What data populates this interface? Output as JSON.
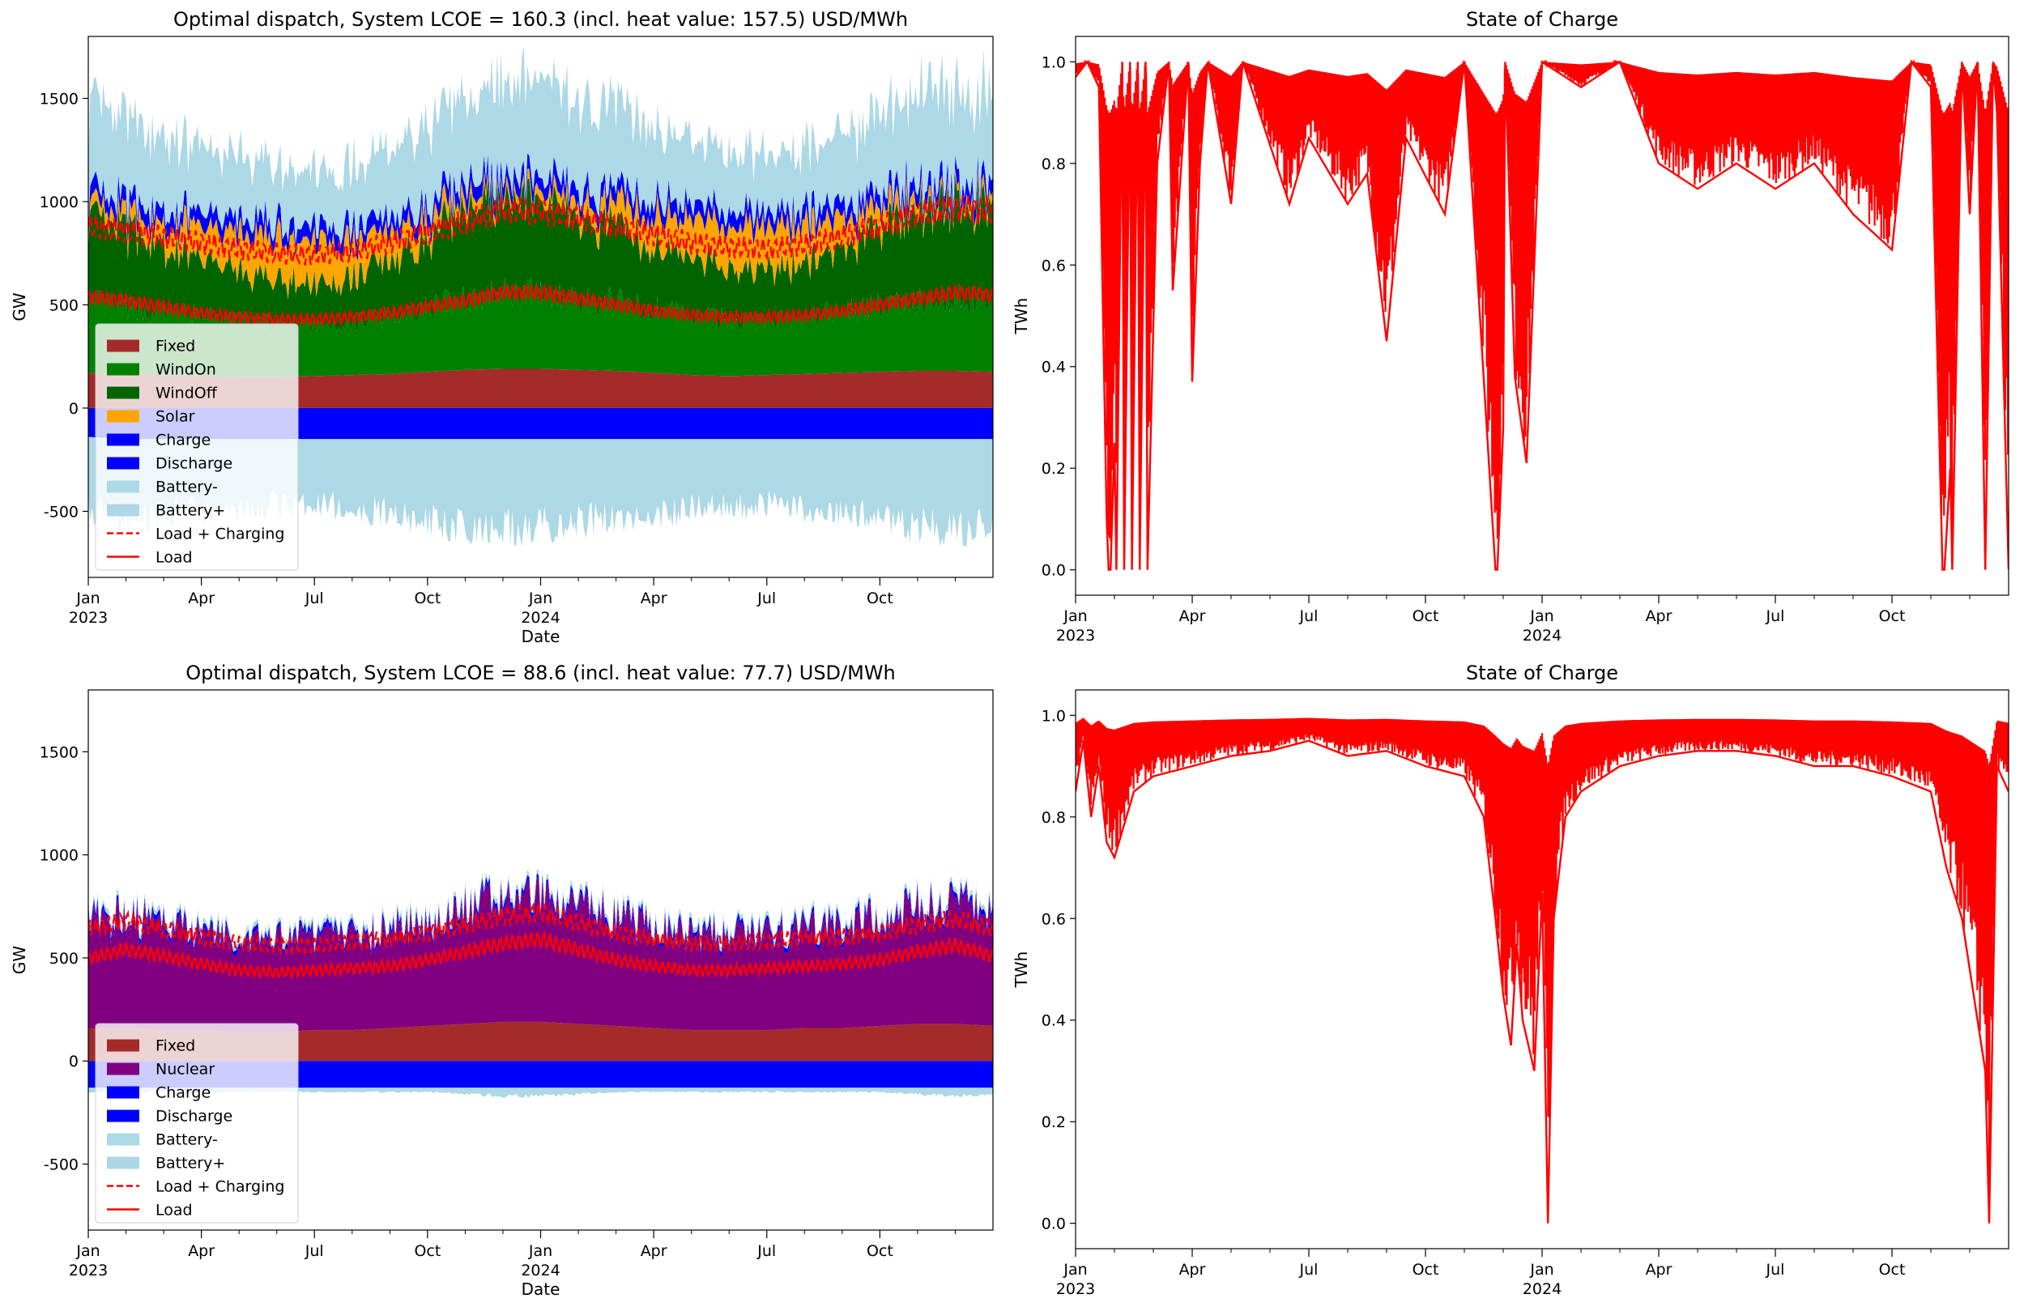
{
  "chart_data": [
    {
      "panel": "top-left",
      "type": "area",
      "title": "Optimal dispatch, System LCOE = 160.3 (incl. heat value: 157.5) USD/MWh",
      "ylabel": "GW",
      "xlabel": "Date",
      "ylim": [
        -820,
        1800
      ],
      "yticks": [
        -500,
        0,
        500,
        1000,
        1500
      ],
      "xticks": [
        {
          "m": 0,
          "line1": "Jan",
          "line2": "2023"
        },
        {
          "m": 3,
          "line1": "Apr",
          "line2": ""
        },
        {
          "m": 6,
          "line1": "Jul",
          "line2": ""
        },
        {
          "m": 9,
          "line1": "Oct",
          "line2": ""
        },
        {
          "m": 12,
          "line1": "Jan",
          "line2": "2024"
        },
        {
          "m": 15,
          "line1": "Apr",
          "line2": ""
        },
        {
          "m": 18,
          "line1": "Jul",
          "line2": ""
        },
        {
          "m": 21,
          "line1": "Oct",
          "line2": ""
        }
      ],
      "legend_position": "lower-left",
      "x_months": [
        0,
        1,
        2,
        3,
        4,
        5,
        6,
        7,
        8,
        9,
        10,
        11,
        12,
        13,
        14,
        15,
        16,
        17,
        18,
        19,
        20,
        21,
        22,
        23,
        24
      ],
      "series": [
        {
          "name": "Fixed",
          "color": "#a52a2a",
          "kind": "pos",
          "values": [
            170,
            165,
            160,
            155,
            150,
            150,
            155,
            160,
            165,
            175,
            185,
            190,
            190,
            185,
            180,
            170,
            160,
            155,
            160,
            165,
            170,
            175,
            180,
            180,
            175
          ]
        },
        {
          "name": "WindOn",
          "color": "#008000",
          "kind": "pos",
          "values": [
            300,
            280,
            260,
            250,
            230,
            220,
            210,
            220,
            240,
            270,
            300,
            320,
            320,
            300,
            290,
            270,
            250,
            240,
            230,
            240,
            260,
            280,
            300,
            310,
            300
          ]
        },
        {
          "name": "WindOff",
          "color": "#006400",
          "kind": "pos",
          "values": [
            350,
            320,
            280,
            230,
            200,
            180,
            170,
            190,
            230,
            300,
            360,
            400,
            390,
            360,
            320,
            270,
            230,
            210,
            200,
            220,
            260,
            320,
            380,
            400,
            380
          ]
        },
        {
          "name": "Solar",
          "color": "#ffa500",
          "kind": "pos",
          "values": [
            40,
            60,
            90,
            130,
            160,
            180,
            180,
            160,
            120,
            80,
            50,
            30,
            40,
            60,
            90,
            130,
            160,
            180,
            180,
            160,
            120,
            80,
            50,
            30,
            40
          ]
        },
        {
          "name": "Charge",
          "color": "#0000ff",
          "kind": "neg",
          "values": [
            -140,
            -150,
            -150,
            -150,
            -150,
            -150,
            -150,
            -150,
            -150,
            -150,
            -150,
            -150,
            -150,
            -150,
            -150,
            -150,
            -150,
            -150,
            -150,
            -150,
            -150,
            -150,
            -150,
            -150,
            -150
          ]
        },
        {
          "name": "Discharge",
          "color": "#0000ff",
          "kind": "pos",
          "values": [
            60,
            60,
            60,
            60,
            60,
            60,
            60,
            60,
            60,
            60,
            60,
            60,
            60,
            60,
            60,
            60,
            60,
            60,
            60,
            60,
            60,
            60,
            60,
            60,
            60
          ]
        },
        {
          "name": "Battery-",
          "color": "#add8e6",
          "kind": "neg",
          "values": [
            -360,
            -380,
            -360,
            -350,
            -340,
            -320,
            -310,
            -330,
            -360,
            -400,
            -420,
            -430,
            -420,
            -400,
            -380,
            -360,
            -340,
            -330,
            -320,
            -340,
            -360,
            -380,
            -420,
            -440,
            -420
          ]
        },
        {
          "name": "Battery+",
          "color": "#add8e6",
          "kind": "pos",
          "values": [
            350,
            330,
            300,
            280,
            260,
            240,
            230,
            250,
            280,
            330,
            370,
            400,
            400,
            370,
            340,
            300,
            270,
            250,
            240,
            260,
            300,
            340,
            380,
            410,
            390
          ]
        },
        {
          "name": "Load + Charging",
          "color": "#ff0000",
          "kind": "line",
          "dash": "12,6",
          "values": [
            880,
            860,
            830,
            800,
            770,
            750,
            740,
            760,
            800,
            850,
            900,
            960,
            950,
            920,
            880,
            840,
            800,
            780,
            770,
            790,
            830,
            880,
            940,
            970,
            950
          ]
        },
        {
          "name": "Load",
          "color": "#ff0000",
          "kind": "line",
          "dash": "",
          "values": [
            540,
            520,
            490,
            460,
            440,
            430,
            430,
            440,
            460,
            490,
            520,
            560,
            560,
            530,
            500,
            470,
            450,
            440,
            440,
            450,
            470,
            500,
            530,
            560,
            550
          ]
        }
      ]
    },
    {
      "panel": "top-right",
      "type": "line",
      "title": "State of Charge",
      "ylabel": "TWh",
      "xlabel": "",
      "ylim": [
        -0.05,
        1.05
      ],
      "yticks": [
        0.0,
        0.2,
        0.4,
        0.6,
        0.8,
        1.0
      ],
      "xticks": [
        {
          "m": 0,
          "line1": "Jan",
          "line2": "2023"
        },
        {
          "m": 3,
          "line1": "Apr",
          "line2": ""
        },
        {
          "m": 6,
          "line1": "Jul",
          "line2": ""
        },
        {
          "m": 9,
          "line1": "Oct",
          "line2": ""
        },
        {
          "m": 12,
          "line1": "Jan",
          "line2": "2024"
        },
        {
          "m": 15,
          "line1": "Apr",
          "line2": ""
        },
        {
          "m": 18,
          "line1": "Jul",
          "line2": ""
        },
        {
          "m": 21,
          "line1": "Oct",
          "line2": ""
        }
      ],
      "series": [
        {
          "color": "#ff0000",
          "x_months": [
            0,
            0.3,
            0.6,
            0.8,
            0.85,
            0.9,
            1.0,
            1.05,
            1.2,
            1.25,
            1.4,
            1.45,
            1.6,
            1.65,
            1.8,
            1.85,
            2.1,
            2.4,
            2.5,
            2.9,
            3.0,
            3.2,
            3.4,
            4.0,
            4.3,
            5.5,
            6.0,
            7.0,
            7.5,
            8.0,
            8.5,
            9.5,
            10.0,
            10.8,
            10.85,
            11.0,
            11.05,
            11.3,
            11.6,
            12.0,
            13.0,
            14.0,
            15.0,
            16.0,
            17.0,
            18.0,
            19.0,
            20.0,
            21.0,
            21.5,
            22.0,
            22.3,
            22.35,
            22.5,
            22.55,
            22.8,
            23.0,
            23.2,
            23.4,
            23.6,
            23.7,
            24.0
          ],
          "values": [
            0.97,
            1.0,
            0.95,
            0.1,
            0.0,
            0.0,
            0.25,
            0.0,
            1.0,
            0.0,
            1.0,
            0.0,
            1.0,
            0.0,
            1.0,
            0.0,
            0.8,
            1.0,
            0.55,
            1.0,
            0.37,
            0.8,
            1.0,
            0.72,
            1.0,
            0.72,
            0.85,
            0.72,
            0.78,
            0.45,
            0.85,
            0.7,
            1.0,
            0.0,
            0.0,
            0.28,
            1.0,
            0.38,
            0.21,
            1.0,
            0.95,
            1.0,
            0.8,
            0.75,
            0.8,
            0.75,
            0.8,
            0.7,
            0.63,
            1.0,
            0.95,
            0.0,
            0.0,
            0.2,
            0.0,
            1.0,
            0.7,
            1.0,
            0.0,
            1.0,
            0.9,
            0.0
          ]
        }
      ]
    },
    {
      "panel": "bottom-left",
      "type": "area",
      "title": "Optimal dispatch, System LCOE = 88.6 (incl. heat value: 77.7) USD/MWh",
      "ylabel": "GW",
      "xlabel": "Date",
      "ylim": [
        -820,
        1800
      ],
      "yticks": [
        -500,
        0,
        500,
        1000,
        1500
      ],
      "xticks": [
        {
          "m": 0,
          "line1": "Jan",
          "line2": "2023"
        },
        {
          "m": 3,
          "line1": "Apr",
          "line2": ""
        },
        {
          "m": 6,
          "line1": "Jul",
          "line2": ""
        },
        {
          "m": 9,
          "line1": "Oct",
          "line2": ""
        },
        {
          "m": 12,
          "line1": "Jan",
          "line2": "2024"
        },
        {
          "m": 15,
          "line1": "Apr",
          "line2": ""
        },
        {
          "m": 18,
          "line1": "Jul",
          "line2": ""
        },
        {
          "m": 21,
          "line1": "Oct",
          "line2": ""
        }
      ],
      "legend_position": "lower-left",
      "x_months": [
        0,
        1,
        2,
        3,
        4,
        5,
        6,
        7,
        8,
        9,
        10,
        11,
        12,
        13,
        14,
        15,
        16,
        17,
        18,
        19,
        20,
        21,
        22,
        23,
        24
      ],
      "series": [
        {
          "name": "Fixed",
          "color": "#a52a2a",
          "kind": "pos",
          "values": [
            160,
            160,
            150,
            150,
            140,
            140,
            150,
            150,
            160,
            170,
            180,
            190,
            190,
            180,
            170,
            160,
            150,
            150,
            150,
            160,
            160,
            170,
            180,
            180,
            170
          ]
        },
        {
          "name": "Nuclear",
          "color": "#800080",
          "kind": "pos",
          "values": [
            430,
            460,
            440,
            410,
            380,
            370,
            380,
            390,
            400,
            420,
            470,
            510,
            520,
            480,
            440,
            410,
            390,
            390,
            400,
            410,
            420,
            440,
            480,
            510,
            470
          ]
        },
        {
          "name": "Charge",
          "color": "#0000ff",
          "kind": "neg",
          "values": [
            -130,
            -130,
            -130,
            -130,
            -130,
            -130,
            -130,
            -130,
            -130,
            -130,
            -130,
            -130,
            -130,
            -130,
            -130,
            -130,
            -130,
            -130,
            -130,
            -130,
            -130,
            -130,
            -130,
            -130,
            -130
          ]
        },
        {
          "name": "Discharge",
          "color": "#0000ff",
          "kind": "pos",
          "values": [
            20,
            20,
            20,
            20,
            20,
            20,
            20,
            20,
            20,
            20,
            20,
            20,
            20,
            20,
            20,
            20,
            20,
            20,
            20,
            20,
            20,
            20,
            20,
            20,
            20
          ]
        },
        {
          "name": "Battery-",
          "color": "#add8e6",
          "kind": "neg",
          "values": [
            -20,
            -20,
            -20,
            -20,
            -20,
            -20,
            -20,
            -20,
            -20,
            -20,
            -30,
            -40,
            -40,
            -30,
            -20,
            -20,
            -20,
            -20,
            -20,
            -20,
            -20,
            -20,
            -30,
            -40,
            -30
          ]
        },
        {
          "name": "Battery+",
          "color": "#add8e6",
          "kind": "pos",
          "values": [
            20,
            20,
            20,
            20,
            20,
            20,
            20,
            20,
            20,
            20,
            20,
            20,
            20,
            20,
            20,
            20,
            20,
            20,
            20,
            20,
            20,
            20,
            20,
            20,
            20
          ]
        },
        {
          "name": "Load + Charging",
          "color": "#ff0000",
          "kind": "line",
          "dash": "12,6",
          "values": [
            640,
            680,
            640,
            600,
            570,
            560,
            560,
            580,
            590,
            620,
            660,
            700,
            720,
            670,
            620,
            590,
            570,
            570,
            580,
            600,
            600,
            620,
            660,
            690,
            640
          ]
        },
        {
          "name": "Load",
          "color": "#ff0000",
          "kind": "line",
          "dash": "",
          "values": [
            500,
            540,
            510,
            470,
            440,
            430,
            440,
            450,
            460,
            490,
            530,
            570,
            590,
            540,
            490,
            460,
            440,
            440,
            450,
            460,
            470,
            490,
            530,
            560,
            510
          ]
        }
      ]
    },
    {
      "panel": "bottom-right",
      "type": "line",
      "title": "State of Charge",
      "ylabel": "TWh",
      "xlabel": "",
      "ylim": [
        -0.05,
        1.05
      ],
      "yticks": [
        0.0,
        0.2,
        0.4,
        0.6,
        0.8,
        1.0
      ],
      "xticks": [
        {
          "m": 0,
          "line1": "Jan",
          "line2": "2023"
        },
        {
          "m": 3,
          "line1": "Apr",
          "line2": ""
        },
        {
          "m": 6,
          "line1": "Jul",
          "line2": ""
        },
        {
          "m": 9,
          "line1": "Oct",
          "line2": ""
        },
        {
          "m": 12,
          "line1": "Jan",
          "line2": "2024"
        },
        {
          "m": 15,
          "line1": "Apr",
          "line2": ""
        },
        {
          "m": 18,
          "line1": "Jul",
          "line2": ""
        },
        {
          "m": 21,
          "line1": "Oct",
          "line2": ""
        }
      ],
      "series": [
        {
          "color": "#ff0000",
          "x_months": [
            0,
            0.2,
            0.4,
            0.6,
            0.8,
            1.0,
            1.5,
            2.0,
            3.0,
            4.0,
            5.0,
            6.0,
            7.0,
            8.0,
            9.0,
            10.0,
            10.5,
            10.8,
            11.0,
            11.2,
            11.35,
            11.5,
            11.8,
            12.0,
            12.15,
            12.3,
            12.6,
            13.0,
            14.0,
            15.0,
            16.0,
            17.0,
            18.0,
            19.0,
            20.0,
            21.0,
            22.0,
            22.4,
            22.8,
            23.0,
            23.2,
            23.4,
            23.5,
            23.7,
            24.0
          ],
          "values": [
            0.85,
            0.95,
            0.8,
            0.9,
            0.75,
            0.72,
            0.85,
            0.88,
            0.9,
            0.92,
            0.93,
            0.95,
            0.92,
            0.93,
            0.9,
            0.88,
            0.8,
            0.6,
            0.45,
            0.35,
            0.55,
            0.4,
            0.3,
            0.65,
            0.0,
            0.6,
            0.8,
            0.85,
            0.9,
            0.92,
            0.93,
            0.93,
            0.92,
            0.9,
            0.9,
            0.88,
            0.85,
            0.7,
            0.6,
            0.5,
            0.4,
            0.3,
            0.0,
            0.9,
            0.85
          ]
        }
      ]
    }
  ]
}
